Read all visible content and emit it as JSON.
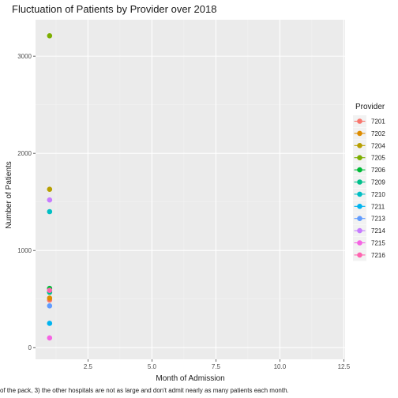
{
  "chart_data": {
    "type": "scatter",
    "title": "Fluctuation of Patients by Provider over 2018",
    "xlabel": "Month of Admission",
    "ylabel": "Number of Patients",
    "xlim": [
      0.45,
      12.55
    ],
    "ylim": [
      -120,
      3375
    ],
    "x_ticks": [
      2.5,
      5.0,
      7.5,
      10.0,
      12.5
    ],
    "x_tick_labels": [
      "2.5",
      "5.0",
      "7.5",
      "10.0",
      "12.5"
    ],
    "y_ticks": [
      0,
      1000,
      2000,
      3000
    ],
    "y_tick_labels": [
      "0",
      "1000",
      "2000",
      "3000"
    ],
    "legend_title": "Provider",
    "legend_position": "right",
    "series": [
      {
        "name": "7201",
        "color": "#F8766D",
        "x": [
          1
        ],
        "y": [
          490
        ]
      },
      {
        "name": "7202",
        "color": "#DE8C00",
        "x": [
          1
        ],
        "y": [
          510
        ]
      },
      {
        "name": "7204",
        "color": "#B79F00",
        "x": [
          1
        ],
        "y": [
          1630
        ]
      },
      {
        "name": "7205",
        "color": "#7CAE00",
        "x": [
          1
        ],
        "y": [
          3210
        ]
      },
      {
        "name": "7206",
        "color": "#00BA38",
        "x": [
          1
        ],
        "y": [
          610
        ]
      },
      {
        "name": "7209",
        "color": "#00C08B",
        "x": [
          1
        ],
        "y": [
          570
        ]
      },
      {
        "name": "7210",
        "color": "#00BFC4",
        "x": [
          1
        ],
        "y": [
          1400
        ]
      },
      {
        "name": "7211",
        "color": "#00B4F0",
        "x": [
          1
        ],
        "y": [
          250
        ]
      },
      {
        "name": "7213",
        "color": "#619CFF",
        "x": [
          1
        ],
        "y": [
          430
        ]
      },
      {
        "name": "7214",
        "color": "#C77CFF",
        "x": [
          1
        ],
        "y": [
          1520
        ]
      },
      {
        "name": "7215",
        "color": "#F564E3",
        "x": [
          1
        ],
        "y": [
          100
        ]
      },
      {
        "name": "7216",
        "color": "#FF64B0",
        "x": [
          1
        ],
        "y": [
          590
        ]
      }
    ],
    "caption": "of the pack, 3) the other hospitals are not as large and don't admit nearly as many patients each month."
  },
  "colors": {
    "panel_bg": "#EBEBEB",
    "grid_major": "#FFFFFF",
    "grid_minor": "#F3F3F3",
    "legend_key_bg": "#F2F2F2"
  }
}
